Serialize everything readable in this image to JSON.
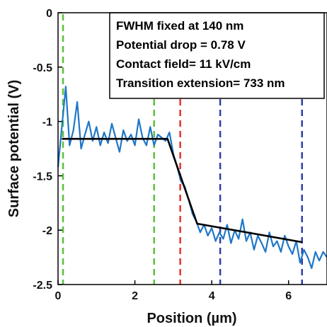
{
  "chart_data": {
    "type": "line",
    "xlabel": "Position (µm)",
    "ylabel": "Surface potential (V)",
    "xlim": [
      0,
      7
    ],
    "ylim": [
      -2.5,
      0
    ],
    "xticks": [
      0,
      2,
      4,
      6
    ],
    "yticks": [
      0,
      -0.5,
      -1,
      -1.5,
      -2,
      -2.5
    ],
    "xtick_labels": [
      "0",
      "2",
      "4",
      "6"
    ],
    "ytick_labels": [
      "0",
      "-0.5",
      "-1",
      "-1.5",
      "-2",
      "-2.5"
    ],
    "grid": false,
    "annotation_lines": [
      "FWHM fixed at 140 nm",
      "Potential drop = 0.78 V",
      "Contact field= 11 kV/cm",
      "Transition extension= 733 nm"
    ],
    "vertical_lines": [
      {
        "x": 0.13,
        "color": "#5cc13b"
      },
      {
        "x": 2.5,
        "color": "#5cc13b"
      },
      {
        "x": 3.18,
        "color": "#e8322d"
      },
      {
        "x": 4.22,
        "color": "#2f3fa8"
      },
      {
        "x": 6.35,
        "color": "#2f3fa8"
      }
    ],
    "series": [
      {
        "color": "#1f77c8",
        "x": [
          0,
          0.1,
          0.2,
          0.3,
          0.4,
          0.5,
          0.6,
          0.7,
          0.8,
          0.9,
          1.0,
          1.1,
          1.2,
          1.3,
          1.4,
          1.5,
          1.6,
          1.7,
          1.8,
          1.9,
          2.0,
          2.1,
          2.2,
          2.3,
          2.4,
          2.5,
          2.6,
          2.7,
          2.8,
          2.9,
          3.0,
          3.1,
          3.2,
          3.3,
          3.4,
          3.5,
          3.6,
          3.7,
          3.8,
          3.9,
          4.0,
          4.1,
          4.2,
          4.3,
          4.4,
          4.5,
          4.6,
          4.7,
          4.8,
          4.9,
          5.0,
          5.1,
          5.2,
          5.3,
          5.4,
          5.5,
          5.6,
          5.7,
          5.8,
          5.9,
          6.0,
          6.1,
          6.2,
          6.3,
          6.4,
          6.5,
          6.6,
          6.7,
          6.8,
          6.9,
          7.0
        ],
        "y": [
          -1.42,
          -1.05,
          -0.68,
          -1.22,
          -1.08,
          -0.82,
          -1.25,
          -1.12,
          -1.0,
          -1.18,
          -1.05,
          -1.22,
          -1.1,
          -1.2,
          -1.02,
          -1.15,
          -1.28,
          -1.08,
          -1.18,
          -1.12,
          -1.22,
          -0.98,
          -1.15,
          -1.22,
          -1.05,
          -1.22,
          -1.12,
          -1.15,
          -1.18,
          -1.1,
          -1.3,
          -1.42,
          -1.55,
          -1.6,
          -1.72,
          -1.85,
          -1.92,
          -2.02,
          -1.95,
          -2.05,
          -1.98,
          -2.1,
          -2.02,
          -2.08,
          -1.95,
          -2.12,
          -2.0,
          -2.08,
          -1.9,
          -2.1,
          -2.02,
          -2.18,
          -2.05,
          -2.12,
          -2.2,
          -2.02,
          -2.15,
          -2.1,
          -2.2,
          -2.05,
          -2.15,
          -2.22,
          -2.1,
          -2.3,
          -2.18,
          -2.25,
          -2.35,
          -2.2,
          -2.28,
          -2.2,
          -2.25
        ]
      },
      {
        "color": "#000000",
        "x": [
          0.1,
          2.85,
          3.62,
          6.35
        ],
        "y": [
          -1.16,
          -1.16,
          -1.94,
          -2.11
        ]
      }
    ]
  }
}
